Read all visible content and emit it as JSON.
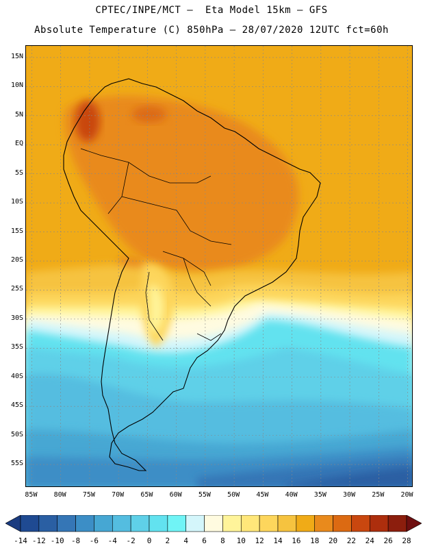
{
  "header": {
    "line1": "CPTEC/INPE/MCT –  Eta Model 15km – GFS",
    "line2": "Absolute Temperature (C) 850hPa – 28/07/2020 12UTC fct=60h"
  },
  "map": {
    "lon_range": [
      -86,
      -19
    ],
    "lat_range": [
      -59,
      17
    ],
    "grid": true,
    "lat_ticks": [
      {
        "value": 15,
        "label": "15N"
      },
      {
        "value": 10,
        "label": "10N"
      },
      {
        "value": 5,
        "label": "5N"
      },
      {
        "value": 0,
        "label": "EQ"
      },
      {
        "value": -5,
        "label": "5S"
      },
      {
        "value": -10,
        "label": "10S"
      },
      {
        "value": -15,
        "label": "15S"
      },
      {
        "value": -20,
        "label": "20S"
      },
      {
        "value": -25,
        "label": "25S"
      },
      {
        "value": -30,
        "label": "30S"
      },
      {
        "value": -35,
        "label": "35S"
      },
      {
        "value": -40,
        "label": "40S"
      },
      {
        "value": -45,
        "label": "45S"
      },
      {
        "value": -50,
        "label": "50S"
      },
      {
        "value": -55,
        "label": "55S"
      }
    ],
    "lon_ticks": [
      {
        "value": -85,
        "label": "85W"
      },
      {
        "value": -80,
        "label": "80W"
      },
      {
        "value": -75,
        "label": "75W"
      },
      {
        "value": -70,
        "label": "70W"
      },
      {
        "value": -65,
        "label": "65W"
      },
      {
        "value": -60,
        "label": "60W"
      },
      {
        "value": -55,
        "label": "55W"
      },
      {
        "value": -50,
        "label": "50W"
      },
      {
        "value": -45,
        "label": "45W"
      },
      {
        "value": -40,
        "label": "40W"
      },
      {
        "value": -35,
        "label": "35W"
      },
      {
        "value": -30,
        "label": "30W"
      },
      {
        "value": -25,
        "label": "25W"
      },
      {
        "value": -20,
        "label": "20W"
      }
    ]
  },
  "colorbar": {
    "labels": [
      "-14",
      "-12",
      "-10",
      "-8",
      "-6",
      "-4",
      "-2",
      "0",
      "2",
      "4",
      "6",
      "8",
      "10",
      "12",
      "14",
      "16",
      "18",
      "20",
      "22",
      "24",
      "26",
      "28"
    ],
    "colors": [
      "#1f4a92",
      "#2a5fa3",
      "#3576b6",
      "#3c8ec6",
      "#46a7d3",
      "#54bde0",
      "#5fd0e8",
      "#62e2ef",
      "#70f4f6",
      "#d4f6fb",
      "#fffbe0",
      "#fff49a",
      "#ffe77a",
      "#fdd65c",
      "#f6c33f",
      "#f0ab17",
      "#e98a1c",
      "#dc6a12",
      "#c9470f",
      "#ad2e0d",
      "#8c1e0d"
    ],
    "under_color": "#1a3b80",
    "over_color": "#6e0f10"
  }
}
